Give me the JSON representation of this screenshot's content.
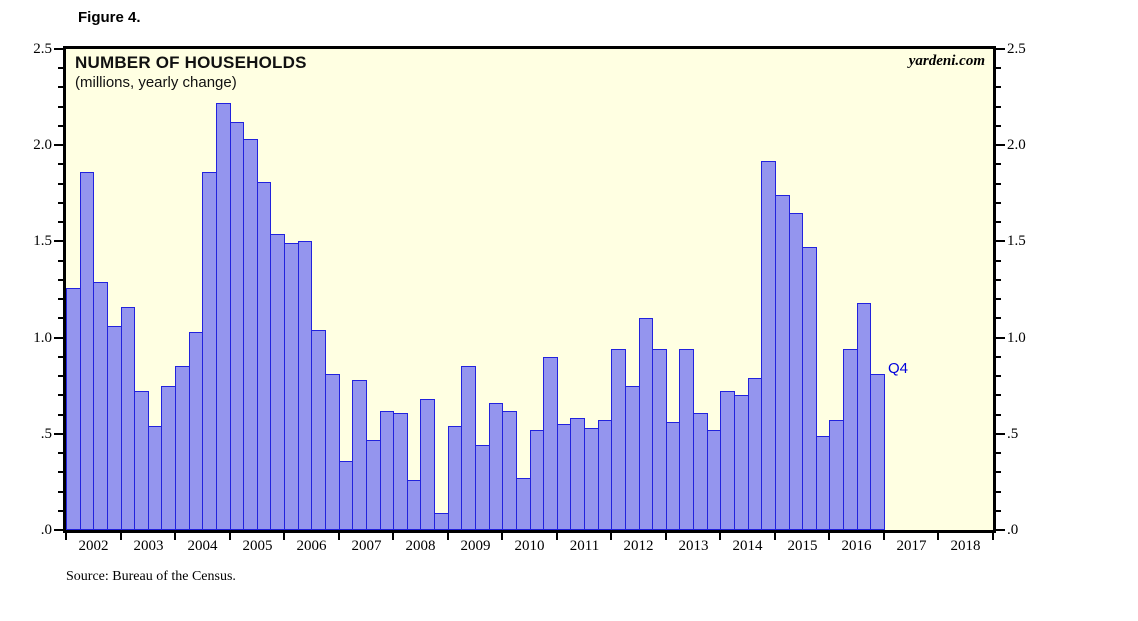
{
  "figure": {
    "label": "Figure 4."
  },
  "colors": {
    "plot_background": "#ffffe2",
    "bar_fill": "#9495ee",
    "bar_border": "#2222dd",
    "frame": "#000000",
    "annotation_blue": "#0000dd"
  },
  "chart_data": {
    "type": "bar",
    "title": "NUMBER OF HOUSEHOLDS",
    "subtitle": "(millions, yearly change)",
    "watermark": "yardeni.com",
    "source": "Source: Bureau of the Census.",
    "annotation": "Q4",
    "ylabel": "",
    "xlabel": "",
    "ylim": [
      0,
      2.5
    ],
    "y_tick_labels": [
      "2.5",
      "2.0",
      "1.5",
      "1.0",
      ".5",
      ".0"
    ],
    "minor_tick_step": 0.1,
    "x_year_labels": [
      "2002",
      "2003",
      "2004",
      "2005",
      "2006",
      "2007",
      "2008",
      "2009",
      "2010",
      "2011",
      "2012",
      "2013",
      "2014",
      "2015",
      "2016",
      "2017",
      "2018"
    ],
    "frequency": "quarterly",
    "start_year": 2002,
    "legend_position": "none",
    "grid": false,
    "series": [
      {
        "name": "Number of households, yearly change (millions)",
        "values": [
          1.26,
          1.86,
          1.29,
          1.06,
          1.16,
          0.72,
          0.54,
          0.75,
          0.85,
          1.03,
          1.86,
          2.22,
          2.12,
          2.03,
          1.81,
          1.54,
          1.49,
          1.5,
          1.04,
          0.81,
          0.36,
          0.78,
          0.47,
          0.62,
          0.61,
          0.26,
          0.68,
          0.09,
          0.54,
          0.85,
          0.44,
          0.66,
          0.62,
          0.27,
          0.52,
          0.9,
          0.55,
          0.58,
          0.53,
          0.57,
          0.94,
          0.75,
          1.1,
          0.94,
          0.56,
          0.94,
          0.61,
          0.52,
          0.72,
          0.7,
          0.79,
          1.92,
          1.74,
          1.65,
          1.47,
          0.49,
          0.57,
          0.94,
          1.18,
          0.81
        ]
      }
    ]
  }
}
